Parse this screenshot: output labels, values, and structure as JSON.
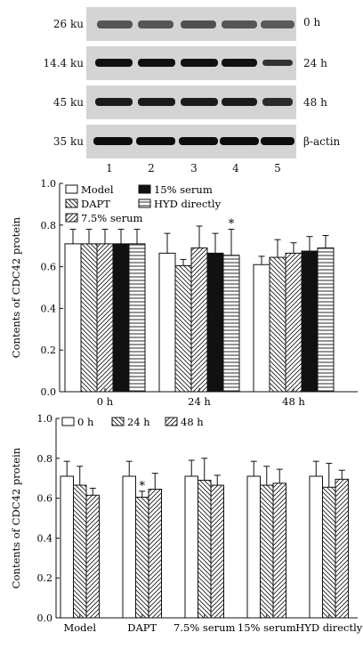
{
  "blot": {
    "rows": [
      {
        "mw": "26 ku",
        "label": "0 h"
      },
      {
        "mw": "14.4 ku",
        "label": "24 h"
      },
      {
        "mw": "45 ku",
        "label": "48 h"
      },
      {
        "mw": "35 ku",
        "label": "β-actin"
      }
    ],
    "lanes": [
      "1",
      "2",
      "3",
      "4",
      "5"
    ]
  },
  "chart_data": [
    {
      "type": "bar",
      "ylabel": "Contents of CDC42 protein",
      "ylim": [
        0,
        1.0
      ],
      "yticks": [
        "0.0",
        "0.2",
        "0.4",
        "0.6",
        "0.8",
        "1.0"
      ],
      "categories": [
        "0 h",
        "24 h",
        "48 h"
      ],
      "series": [
        {
          "name": "Model",
          "values": [
            0.71,
            0.665,
            0.61
          ],
          "errors": [
            0.07,
            0.095,
            0.04
          ],
          "pattern": "white"
        },
        {
          "name": "DAPT",
          "values": [
            0.71,
            0.605,
            0.645
          ],
          "errors": [
            0.07,
            0.03,
            0.085
          ],
          "pattern": "diag-back"
        },
        {
          "name": "7.5% serum",
          "values": [
            0.71,
            0.69,
            0.665
          ],
          "errors": [
            0.07,
            0.105,
            0.05
          ],
          "pattern": "diag-fwd"
        },
        {
          "name": "15% serum",
          "values": [
            0.71,
            0.665,
            0.675
          ],
          "errors": [
            0.07,
            0.095,
            0.07
          ],
          "pattern": "black"
        },
        {
          "name": "HYD directly",
          "values": [
            0.71,
            0.655,
            0.69
          ],
          "errors": [
            0.07,
            0.125,
            0.06
          ],
          "pattern": "horiz"
        }
      ],
      "annotations": [
        {
          "category": "24 h",
          "series": "HYD directly",
          "text": "*"
        }
      ],
      "legend": "top-left"
    },
    {
      "type": "bar",
      "ylabel": "Contents of CDC42 protein",
      "ylim": [
        0,
        1.0
      ],
      "yticks": [
        "0.0",
        "0.2",
        "0.4",
        "0.6",
        "0.8",
        "1.0"
      ],
      "categories": [
        "Model",
        "DAPT",
        "7.5% serum",
        "15% serum",
        "HYD directly"
      ],
      "series": [
        {
          "name": "0 h",
          "values": [
            0.71,
            0.71,
            0.71,
            0.71,
            0.71
          ],
          "errors": [
            0.075,
            0.075,
            0.08,
            0.075,
            0.075
          ],
          "pattern": "white"
        },
        {
          "name": "24 h",
          "values": [
            0.665,
            0.605,
            0.69,
            0.665,
            0.655
          ],
          "errors": [
            0.095,
            0.03,
            0.11,
            0.095,
            0.12
          ],
          "pattern": "diag-back"
        },
        {
          "name": "48 h",
          "values": [
            0.615,
            0.645,
            0.665,
            0.675,
            0.695
          ],
          "errors": [
            0.035,
            0.08,
            0.05,
            0.07,
            0.045
          ],
          "pattern": "diag-fwd"
        }
      ],
      "annotations": [
        {
          "category": "DAPT",
          "series": "24 h",
          "text": "*"
        }
      ],
      "legend": "top"
    }
  ]
}
